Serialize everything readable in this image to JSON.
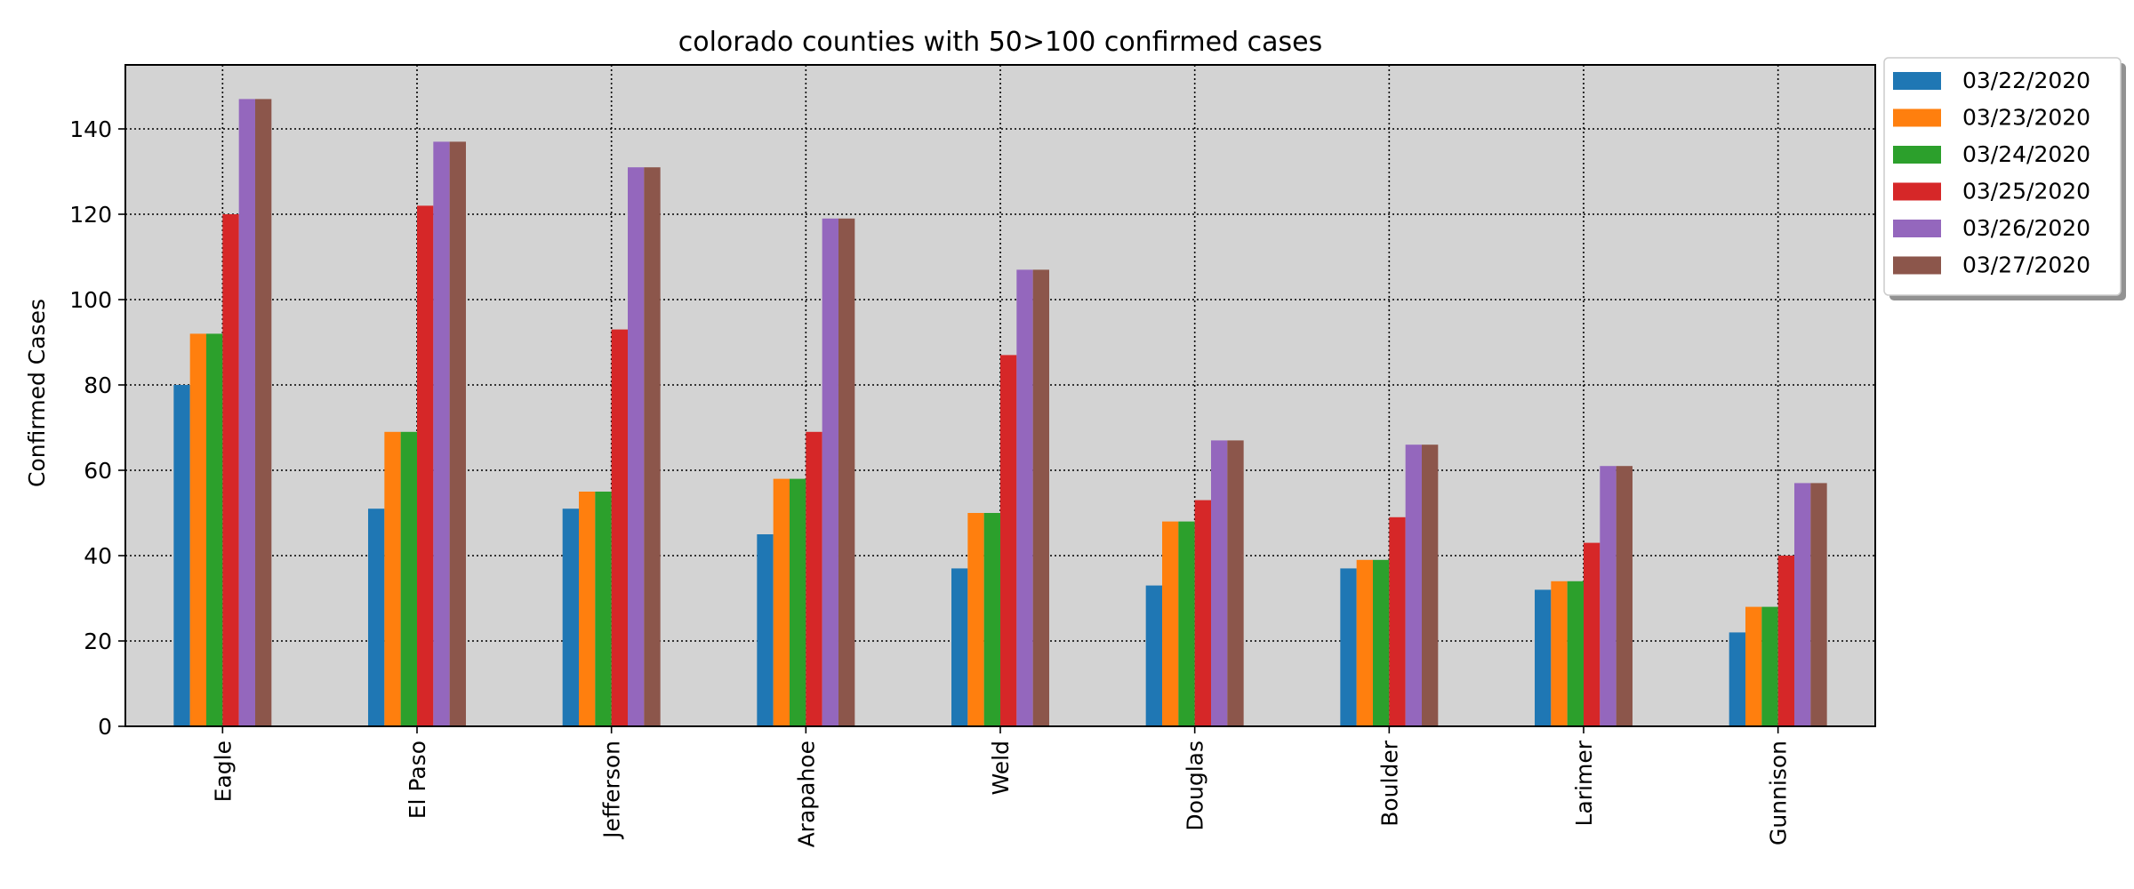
{
  "chart_data": {
    "type": "bar",
    "title": "colorado counties with 50>100 confirmed cases",
    "xlabel": "",
    "ylabel": "Confirmed Cases",
    "ylim": [
      0,
      155
    ],
    "yticks": [
      0,
      20,
      40,
      60,
      80,
      100,
      120,
      140
    ],
    "grid": true,
    "grid_style": "dotted",
    "legend_position": "outside-top-right",
    "background_color": "#d3d3d3",
    "categories": [
      "Eagle",
      "El Paso",
      "Jefferson",
      "Arapahoe",
      "Weld",
      "Douglas",
      "Boulder",
      "Larimer",
      "Gunnison"
    ],
    "series": [
      {
        "name": "03/22/2020",
        "color": "#1f77b4",
        "values": [
          80,
          51,
          51,
          45,
          37,
          33,
          37,
          32,
          22
        ]
      },
      {
        "name": "03/23/2020",
        "color": "#ff7f0e",
        "values": [
          92,
          69,
          55,
          58,
          50,
          48,
          39,
          34,
          28
        ]
      },
      {
        "name": "03/24/2020",
        "color": "#2ca02c",
        "values": [
          92,
          69,
          55,
          58,
          50,
          48,
          39,
          34,
          28
        ]
      },
      {
        "name": "03/25/2020",
        "color": "#d62728",
        "values": [
          120,
          122,
          93,
          69,
          87,
          53,
          49,
          43,
          40
        ]
      },
      {
        "name": "03/26/2020",
        "color": "#9467bd",
        "values": [
          147,
          137,
          131,
          119,
          107,
          67,
          66,
          61,
          57
        ]
      },
      {
        "name": "03/27/2020",
        "color": "#8c564b",
        "values": [
          147,
          137,
          131,
          119,
          107,
          67,
          66,
          61,
          57
        ]
      }
    ]
  }
}
